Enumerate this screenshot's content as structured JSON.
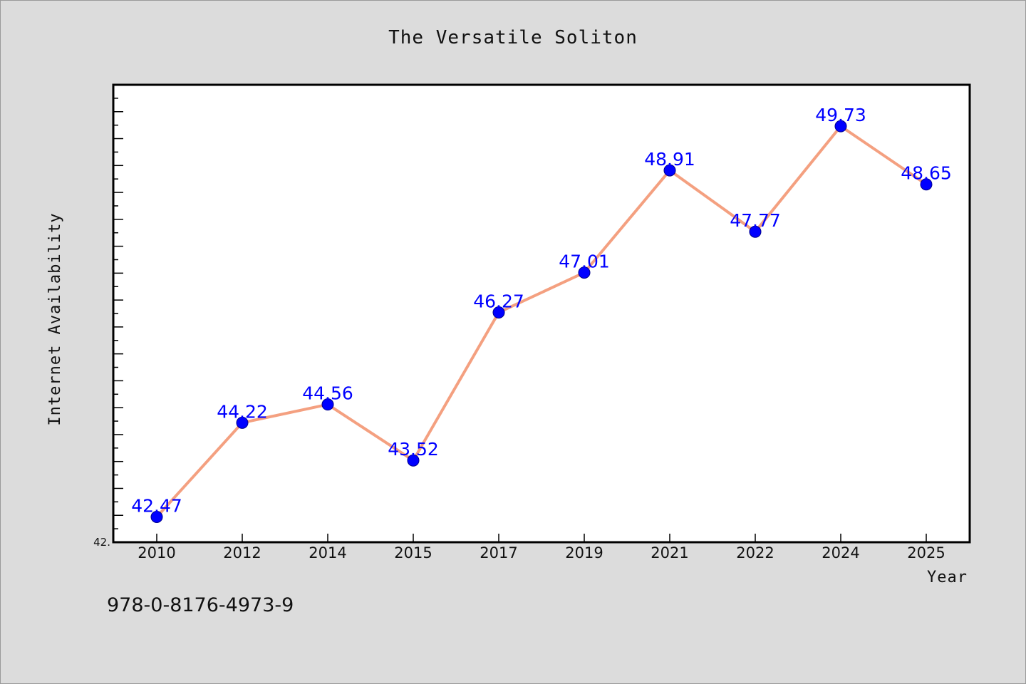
{
  "chart_data": {
    "type": "line",
    "title": "The Versatile Soliton",
    "xlabel": "Year",
    "ylabel": "Internet Availability",
    "categories": [
      "2010",
      "2012",
      "2014",
      "2015",
      "2017",
      "2019",
      "2021",
      "2022",
      "2024",
      "2025"
    ],
    "series": [
      {
        "values": [
          42.47,
          44.22,
          44.56,
          43.52,
          46.27,
          47.01,
          48.91,
          47.77,
          49.73,
          48.65
        ],
        "line_color": "#f4a080",
        "marker_color": "#0000ff"
      }
    ],
    "data_labels": [
      "42.47",
      "44.22",
      "44.56",
      "43.52",
      "46.27",
      "47.01",
      "48.91",
      "47.77",
      "49.73",
      "48.65"
    ],
    "ylim": [
      42.0,
      50.5
    ],
    "y_tick_label_shown": "42.",
    "grid": false,
    "legend": "none"
  },
  "footer": {
    "isbn": "978-0-8176-4973-9"
  }
}
